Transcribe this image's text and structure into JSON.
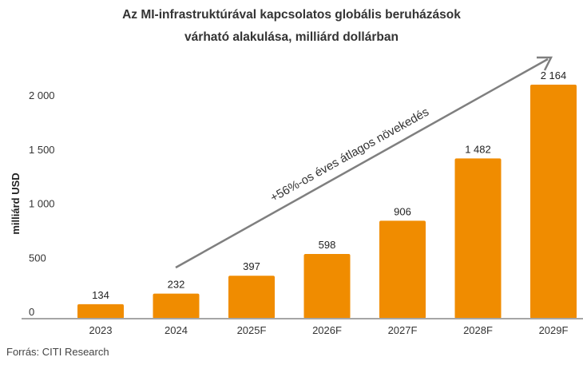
{
  "chart_data": {
    "type": "bar",
    "title": "Az MI-infrastruktúrával kapcsolatos globális beruházások várható alakulása, milliárd dollárban",
    "title_lines": [
      "Az MI-infrastruktúrával kapcsolatos globális beruházások",
      "várható alakulása, milliárd dollárban"
    ],
    "ylabel": "milliárd USD",
    "xlabel": "",
    "categories": [
      "2023",
      "2024",
      "2025F",
      "2026F",
      "2027F",
      "2028F",
      "2029F"
    ],
    "values": [
      134,
      232,
      397,
      598,
      906,
      1482,
      2164
    ],
    "value_labels": [
      "134",
      "232",
      "397",
      "598",
      "906",
      "1 482",
      "2 164"
    ],
    "yticks": [
      0,
      500,
      1000,
      1500,
      2000
    ],
    "ytick_labels": [
      "0",
      "500",
      "1 000",
      "1 500",
      "2 000"
    ],
    "ylim": [
      0,
      2200
    ],
    "grid": false,
    "annotation": "+56%-os éves átlagos növekedés",
    "source": "Forrás: CITI Research",
    "colors": {
      "bar": "#F08C00",
      "arrow": "#7f7f7f",
      "axis": "#a6a6a6"
    }
  }
}
